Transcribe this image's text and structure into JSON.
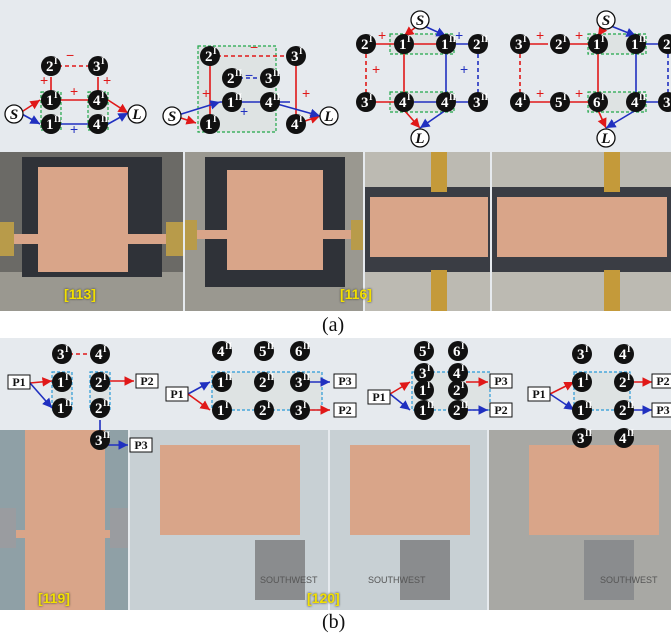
{
  "panels": {
    "a": {
      "label": "(a)",
      "refs": [
        "[113]",
        "[116]"
      ],
      "terminals": {
        "source": "S",
        "load": "L"
      },
      "signs": {
        "plus": "+",
        "minus": "−"
      }
    },
    "b": {
      "label": "(b)",
      "refs": [
        "[119]",
        "[120]"
      ],
      "ports": [
        "P1",
        "P2",
        "P3"
      ],
      "photo_text": [
        "SOUTHWEST",
        "SOUTHWEST",
        "SOUTHWEST"
      ]
    }
  },
  "colors": {
    "red_path": "#e01818",
    "blue_path": "#2030c0",
    "dash_box": "#21a84a",
    "dash_box_b": "#2a9ad8",
    "copper": "#d9a589",
    "substrate": "#3c3f46",
    "housing": "#b8b8b4"
  }
}
